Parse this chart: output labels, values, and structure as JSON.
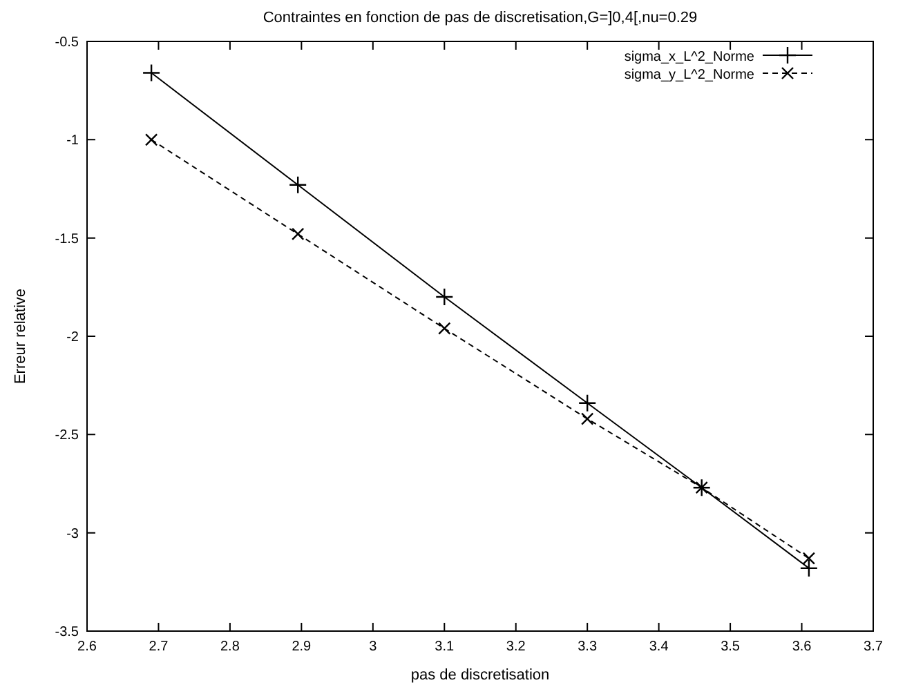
{
  "chart_data": {
    "type": "line",
    "title": "Contraintes en fonction de pas de discretisation,G=]0,4[,nu=0.29",
    "xlabel": "pas de discretisation",
    "ylabel": "Erreur relative",
    "x": [
      2.69,
      2.895,
      3.1,
      3.3,
      3.46,
      3.61
    ],
    "series": [
      {
        "name": "sigma_x_L^2_Norme",
        "color": "#000000",
        "marker": "cross",
        "line_style": "solid",
        "values": [
          -0.66,
          -1.23,
          -1.8,
          -2.34,
          -2.77,
          -3.18
        ]
      },
      {
        "name": "sigma_y_L^2_Norme",
        "color": "#000000",
        "marker": "x",
        "line_style": "dashed",
        "values": [
          -1.0,
          -1.48,
          -1.96,
          -2.42,
          -2.77,
          -3.13
        ]
      }
    ],
    "xlim": [
      2.6,
      3.7
    ],
    "xticks": [
      2.6,
      2.7,
      2.8,
      2.9,
      3,
      3.1,
      3.2,
      3.3,
      3.4,
      3.5,
      3.6,
      3.7
    ],
    "ylim": [
      -3.5,
      -0.5
    ],
    "yticks": [
      -3.5,
      -3,
      -2.5,
      -2,
      -1.5,
      -1,
      -0.5
    ],
    "legend": "top right",
    "grid": false
  }
}
